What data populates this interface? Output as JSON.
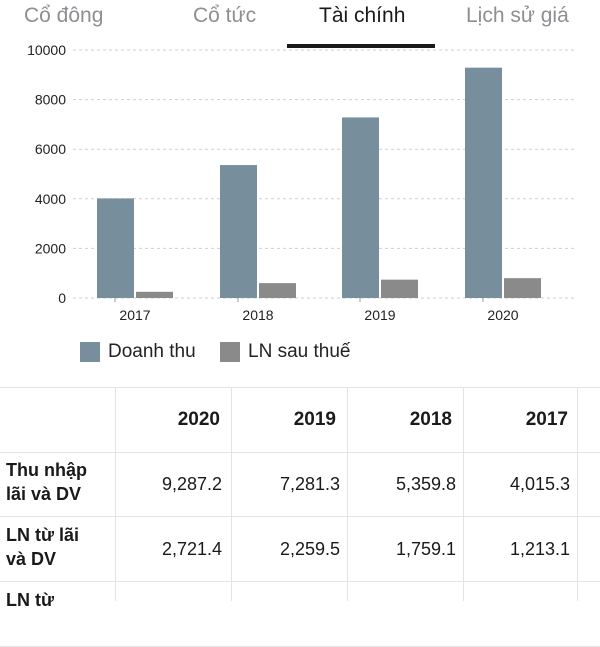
{
  "tabs": [
    {
      "label": "Cổ đông",
      "active": false
    },
    {
      "label": "Cổ tức",
      "active": false
    },
    {
      "label": "Tài chính",
      "active": true
    },
    {
      "label": "Lịch sử giá",
      "active": false
    }
  ],
  "colors": {
    "revenue": "#778f9c",
    "profit": "#8a8a8a",
    "grid": "#cfcfcf",
    "active_tab": "#1a1a1a",
    "inactive_tab": "#8e8e93"
  },
  "chart_data": {
    "type": "bar",
    "categories": [
      "2017",
      "2018",
      "2019",
      "2020"
    ],
    "series": [
      {
        "name": "Doanh thu",
        "values": [
          4015.3,
          5359.8,
          7281.3,
          9287.2
        ]
      },
      {
        "name": "LN sau thuế",
        "values": [
          250,
          600,
          740,
          800
        ]
      }
    ],
    "yticks": [
      "0",
      "2000",
      "4000",
      "6000",
      "8000",
      "10000"
    ],
    "ylim": [
      0,
      10000
    ],
    "grid": true,
    "legend_position": "bottom-left"
  },
  "table": {
    "columns": [
      "2020",
      "2019",
      "2018",
      "2017"
    ],
    "rows": [
      {
        "label": "Thu nhập lãi và DV",
        "label_lines": [
          "Thu nhập",
          "lãi và DV"
        ],
        "values": [
          "9,287.2",
          "7,281.3",
          "5,359.8",
          "4,015.3"
        ]
      },
      {
        "label": "LN từ lãi và DV",
        "label_lines": [
          "LN từ lãi",
          "và DV"
        ],
        "values": [
          "2,721.4",
          "2,259.5",
          "1,759.1",
          "1,213.1"
        ]
      },
      {
        "label": "LN từ",
        "label_lines": [
          "LN từ"
        ],
        "values": [
          "",
          "",
          "",
          ""
        ]
      }
    ]
  }
}
